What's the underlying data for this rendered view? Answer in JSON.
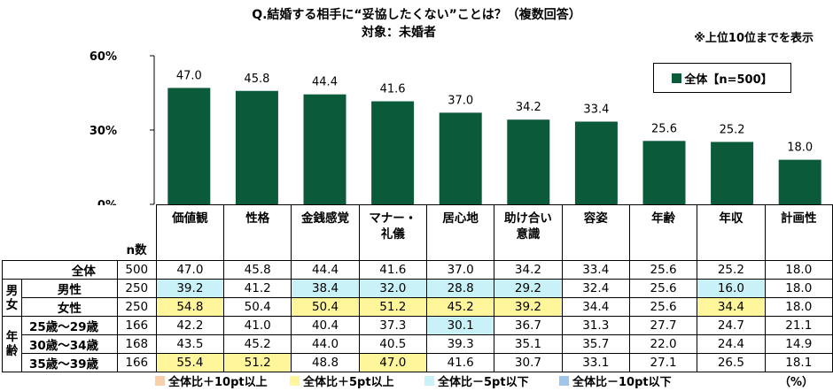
{
  "title": "Q.結婚する相手に“妥協したくない”ことは？（複数回答）",
  "subtitle": "対象：未婚者",
  "note": "※上位10位までを表示",
  "unit": "（%）",
  "n_label": "n数",
  "legend_keys": [
    {
      "label": "全体比＋10pt以上",
      "color": "#f8cfa8"
    },
    {
      "label": "全体比＋5pt以上",
      "color": "#fff59a"
    },
    {
      "label": "全体比－5pt以下",
      "color": "#c8f2f8"
    },
    {
      "label": "全体比－10pt以下",
      "color": "#9ec5ec"
    }
  ],
  "chart_data": {
    "type": "bar",
    "legend": "全体【n=500】",
    "legend_position": "top-right",
    "bar_color": "#0b5a3a",
    "ylim": [
      0,
      60
    ],
    "yticks": [
      "0%",
      "30%",
      "60%"
    ],
    "categories": [
      "価値観",
      "性格",
      "金銭感覚",
      "マナー・礼儀",
      "居心地",
      "助け合い意識",
      "容姿",
      "年齢",
      "年収",
      "計画性"
    ],
    "category_lines": [
      [
        "価値観"
      ],
      [
        "性格"
      ],
      [
        "金銭感覚"
      ],
      [
        "マナー・",
        "礼儀"
      ],
      [
        "居心地"
      ],
      [
        "助け合い",
        "意識"
      ],
      [
        "容姿"
      ],
      [
        "年齢"
      ],
      [
        "年収"
      ],
      [
        "計画性"
      ]
    ],
    "values": [
      47.0,
      45.8,
      44.4,
      41.6,
      37.0,
      34.2,
      33.4,
      25.6,
      25.2,
      18.0
    ]
  },
  "table": {
    "groups": [
      {
        "label": "",
        "rows": [
          {
            "label": "全体",
            "n": "500",
            "values": [
              "47.0",
              "45.8",
              "44.4",
              "41.6",
              "37.0",
              "34.2",
              "33.4",
              "25.6",
              "25.2",
              "18.0"
            ],
            "hl": [
              "",
              "",
              "",
              "",
              "",
              "",
              "",
              "",
              "",
              ""
            ]
          }
        ]
      },
      {
        "label": "男女",
        "rows": [
          {
            "label": "男性",
            "n": "250",
            "values": [
              "39.2",
              "41.2",
              "38.4",
              "32.0",
              "28.8",
              "29.2",
              "32.4",
              "25.6",
              "16.0",
              "18.0"
            ],
            "hl": [
              "lo5",
              "",
              "lo5",
              "lo5",
              "lo5",
              "lo5",
              "",
              "",
              "lo5",
              ""
            ]
          },
          {
            "label": "女性",
            "n": "250",
            "values": [
              "54.8",
              "50.4",
              "50.4",
              "51.2",
              "45.2",
              "39.2",
              "34.4",
              "25.6",
              "34.4",
              "18.0"
            ],
            "hl": [
              "hi5",
              "",
              "hi5",
              "hi5",
              "hi5",
              "hi5",
              "",
              "",
              "hi5",
              ""
            ]
          }
        ]
      },
      {
        "label": "年齢",
        "rows": [
          {
            "label": "25歳～29歳",
            "n": "166",
            "values": [
              "42.2",
              "41.0",
              "40.4",
              "37.3",
              "30.1",
              "36.7",
              "31.3",
              "27.7",
              "24.7",
              "21.1"
            ],
            "hl": [
              "",
              "",
              "",
              "",
              "lo5",
              "",
              "",
              "",
              "",
              ""
            ]
          },
          {
            "label": "30歳～34歳",
            "n": "168",
            "values": [
              "43.5",
              "45.2",
              "44.0",
              "40.5",
              "39.3",
              "35.1",
              "35.7",
              "22.0",
              "24.4",
              "14.9"
            ],
            "hl": [
              "",
              "",
              "",
              "",
              "",
              "",
              "",
              "",
              "",
              ""
            ]
          },
          {
            "label": "35歳～39歳",
            "n": "166",
            "values": [
              "55.4",
              "51.2",
              "48.8",
              "47.0",
              "41.6",
              "30.7",
              "33.1",
              "27.1",
              "26.5",
              "18.1"
            ],
            "hl": [
              "hi5",
              "hi5",
              "",
              "hi5",
              "",
              "",
              "",
              "",
              "",
              ""
            ]
          }
        ]
      }
    ]
  }
}
